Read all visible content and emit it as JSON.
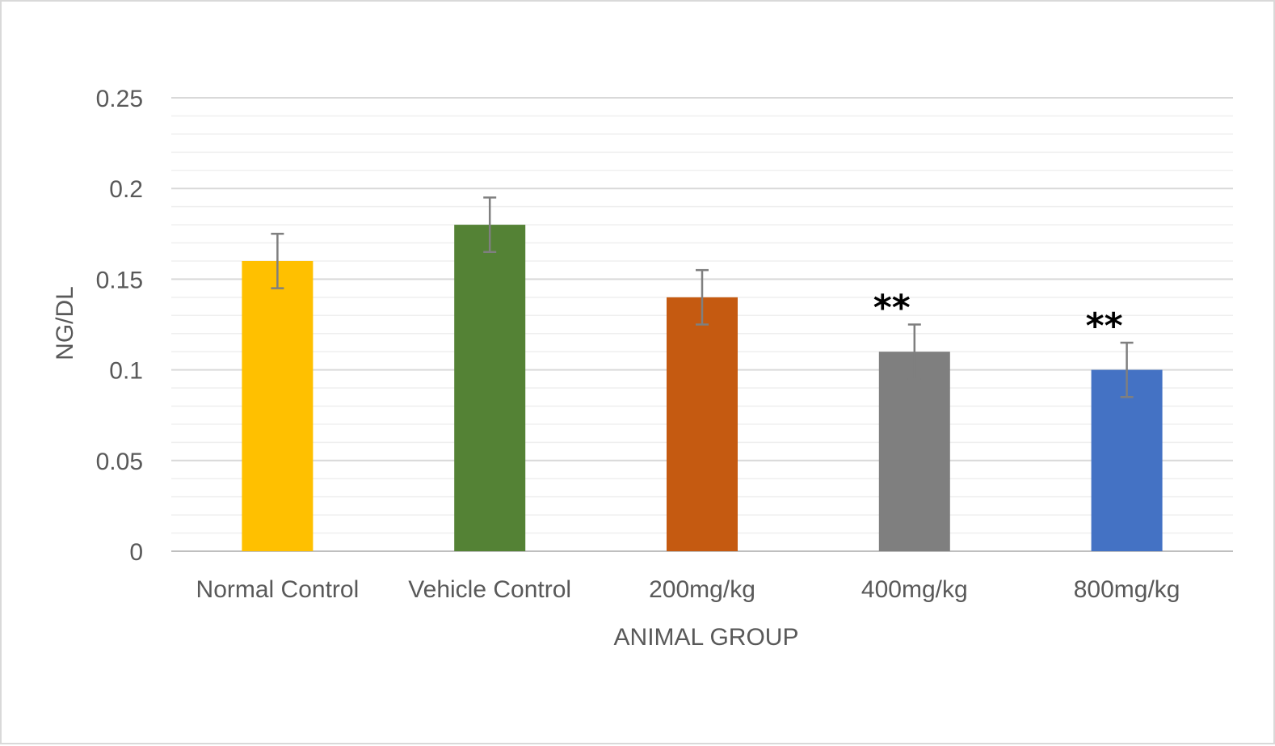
{
  "chart_data": {
    "type": "bar",
    "title": "",
    "xlabel": "ANIMAL GROUP",
    "ylabel": "NG/DL",
    "categories": [
      "Normal Control",
      "Vehicle Control",
      "200mg/kg",
      "400mg/kg",
      "800mg/kg"
    ],
    "values": [
      0.16,
      0.18,
      0.14,
      0.11,
      0.1
    ],
    "error": [
      0.015,
      0.015,
      0.015,
      0.015,
      0.015
    ],
    "colors": [
      "#FFC000",
      "#548235",
      "#C55A11",
      "#7F7F7F",
      "#4472C4"
    ],
    "annotations": [
      "",
      "",
      "",
      "**",
      "**"
    ],
    "yticks": [
      "0",
      "0.05",
      "0.1",
      "0.15",
      "0.2",
      "0.25"
    ],
    "ylim": [
      0,
      0.25
    ],
    "grid": true,
    "legend": "none"
  }
}
